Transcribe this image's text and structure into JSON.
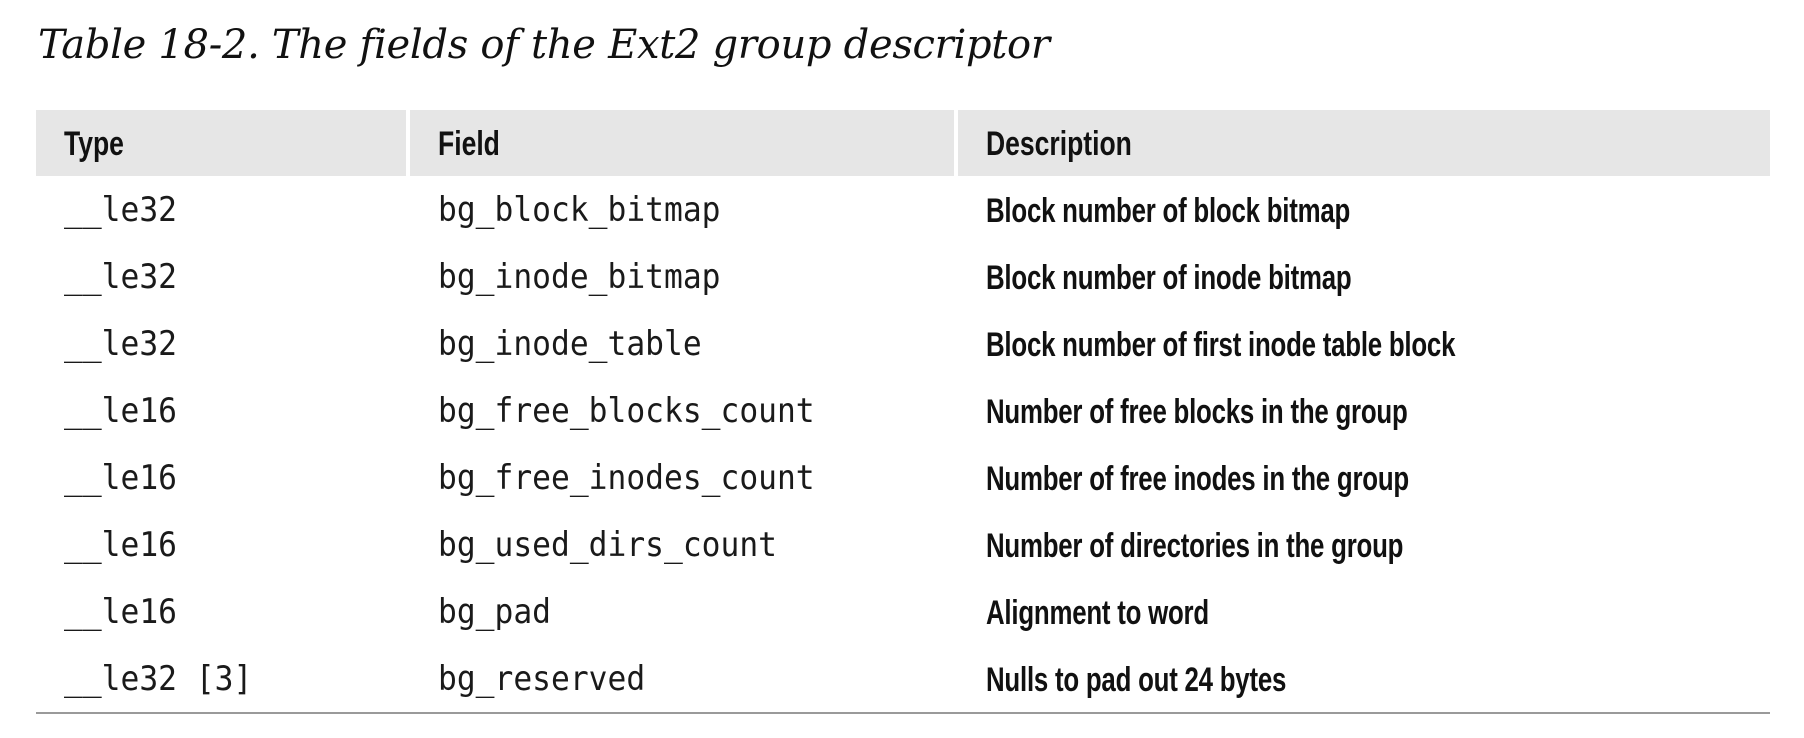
{
  "caption": "Table 18-2. The fields of the Ext2 group descriptor",
  "table": {
    "headers": [
      "Type",
      "Field",
      "Description"
    ],
    "rows": [
      {
        "type": "__le32",
        "field": "bg_block_bitmap",
        "description": "Block number of block bitmap"
      },
      {
        "type": "__le32",
        "field": "bg_inode_bitmap",
        "description": "Block number of inode bitmap"
      },
      {
        "type": "__le32",
        "field": "bg_inode_table",
        "description": "Block number of first inode table block"
      },
      {
        "type": "__le16",
        "field": "bg_free_blocks_count",
        "description": "Number of free blocks in the group"
      },
      {
        "type": "__le16",
        "field": "bg_free_inodes_count",
        "description": "Number of free inodes in the group"
      },
      {
        "type": "__le16",
        "field": "bg_used_dirs_count",
        "description": "Number of directories in the group"
      },
      {
        "type": "__le16",
        "field": "bg_pad",
        "description": "Alignment to word"
      },
      {
        "type": "__le32 [3]",
        "field": "bg_reserved",
        "description": "Nulls to pad out 24 bytes"
      }
    ]
  },
  "colors": {
    "header_background": "#e6e6e6",
    "text": "#111111",
    "rule": "#9a9a9a"
  }
}
